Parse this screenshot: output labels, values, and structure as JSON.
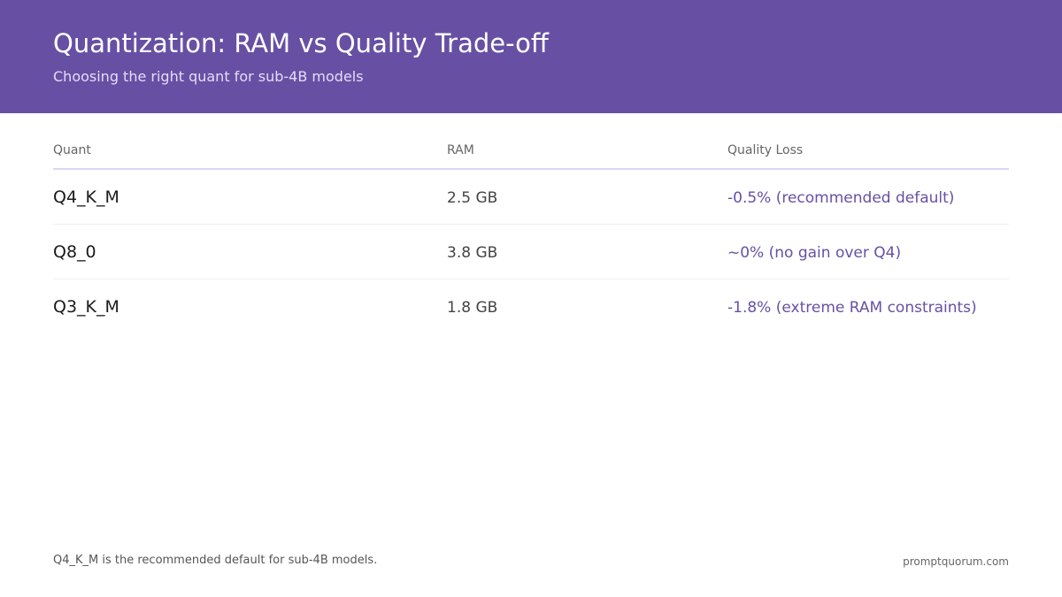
{
  "header": {
    "title": "Quantization: RAM vs Quality Trade-off",
    "subtitle": "Choosing the right quant for sub-4B models"
  },
  "table": {
    "columns": [
      "Quant",
      "RAM",
      "Quality Loss"
    ],
    "rows": [
      {
        "quant": "Q4_K_M",
        "ram": "2.5 GB",
        "quality": "-0.5% (recommended default)"
      },
      {
        "quant": "Q8_0",
        "ram": "3.8 GB",
        "quality": "~0% (no gain over Q4)"
      },
      {
        "quant": "Q3_K_M",
        "ram": "1.8 GB",
        "quality": "-1.8% (extreme RAM constraints)"
      }
    ]
  },
  "footer": {
    "note": "Q4_K_M is the recommended default for sub-4B models.",
    "brand": "promptquorum.com"
  },
  "colors": {
    "header_bg": "#6750a4",
    "accent": "#6750a4"
  }
}
